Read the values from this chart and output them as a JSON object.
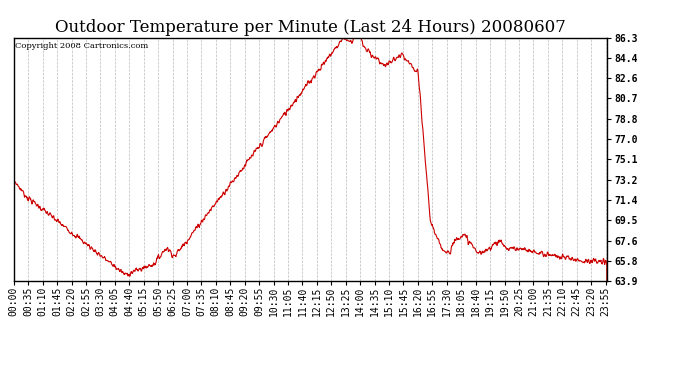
{
  "title": "Outdoor Temperature per Minute (Last 24 Hours) 20080607",
  "copyright": "Copyright 2008 Cartronics.com",
  "ylim": [
    63.9,
    86.3
  ],
  "yticks": [
    63.9,
    65.8,
    67.6,
    69.5,
    71.4,
    73.2,
    75.1,
    77.0,
    78.8,
    80.7,
    82.6,
    84.4,
    86.3
  ],
  "line_color": "#cc0000",
  "bg_color": "#ffffff",
  "plot_bg_color": "#ffffff",
  "grid_color": "#aaaaaa",
  "title_fontsize": 12,
  "tick_fontsize": 7,
  "tick_interval_minutes": 35,
  "total_minutes": 1440
}
